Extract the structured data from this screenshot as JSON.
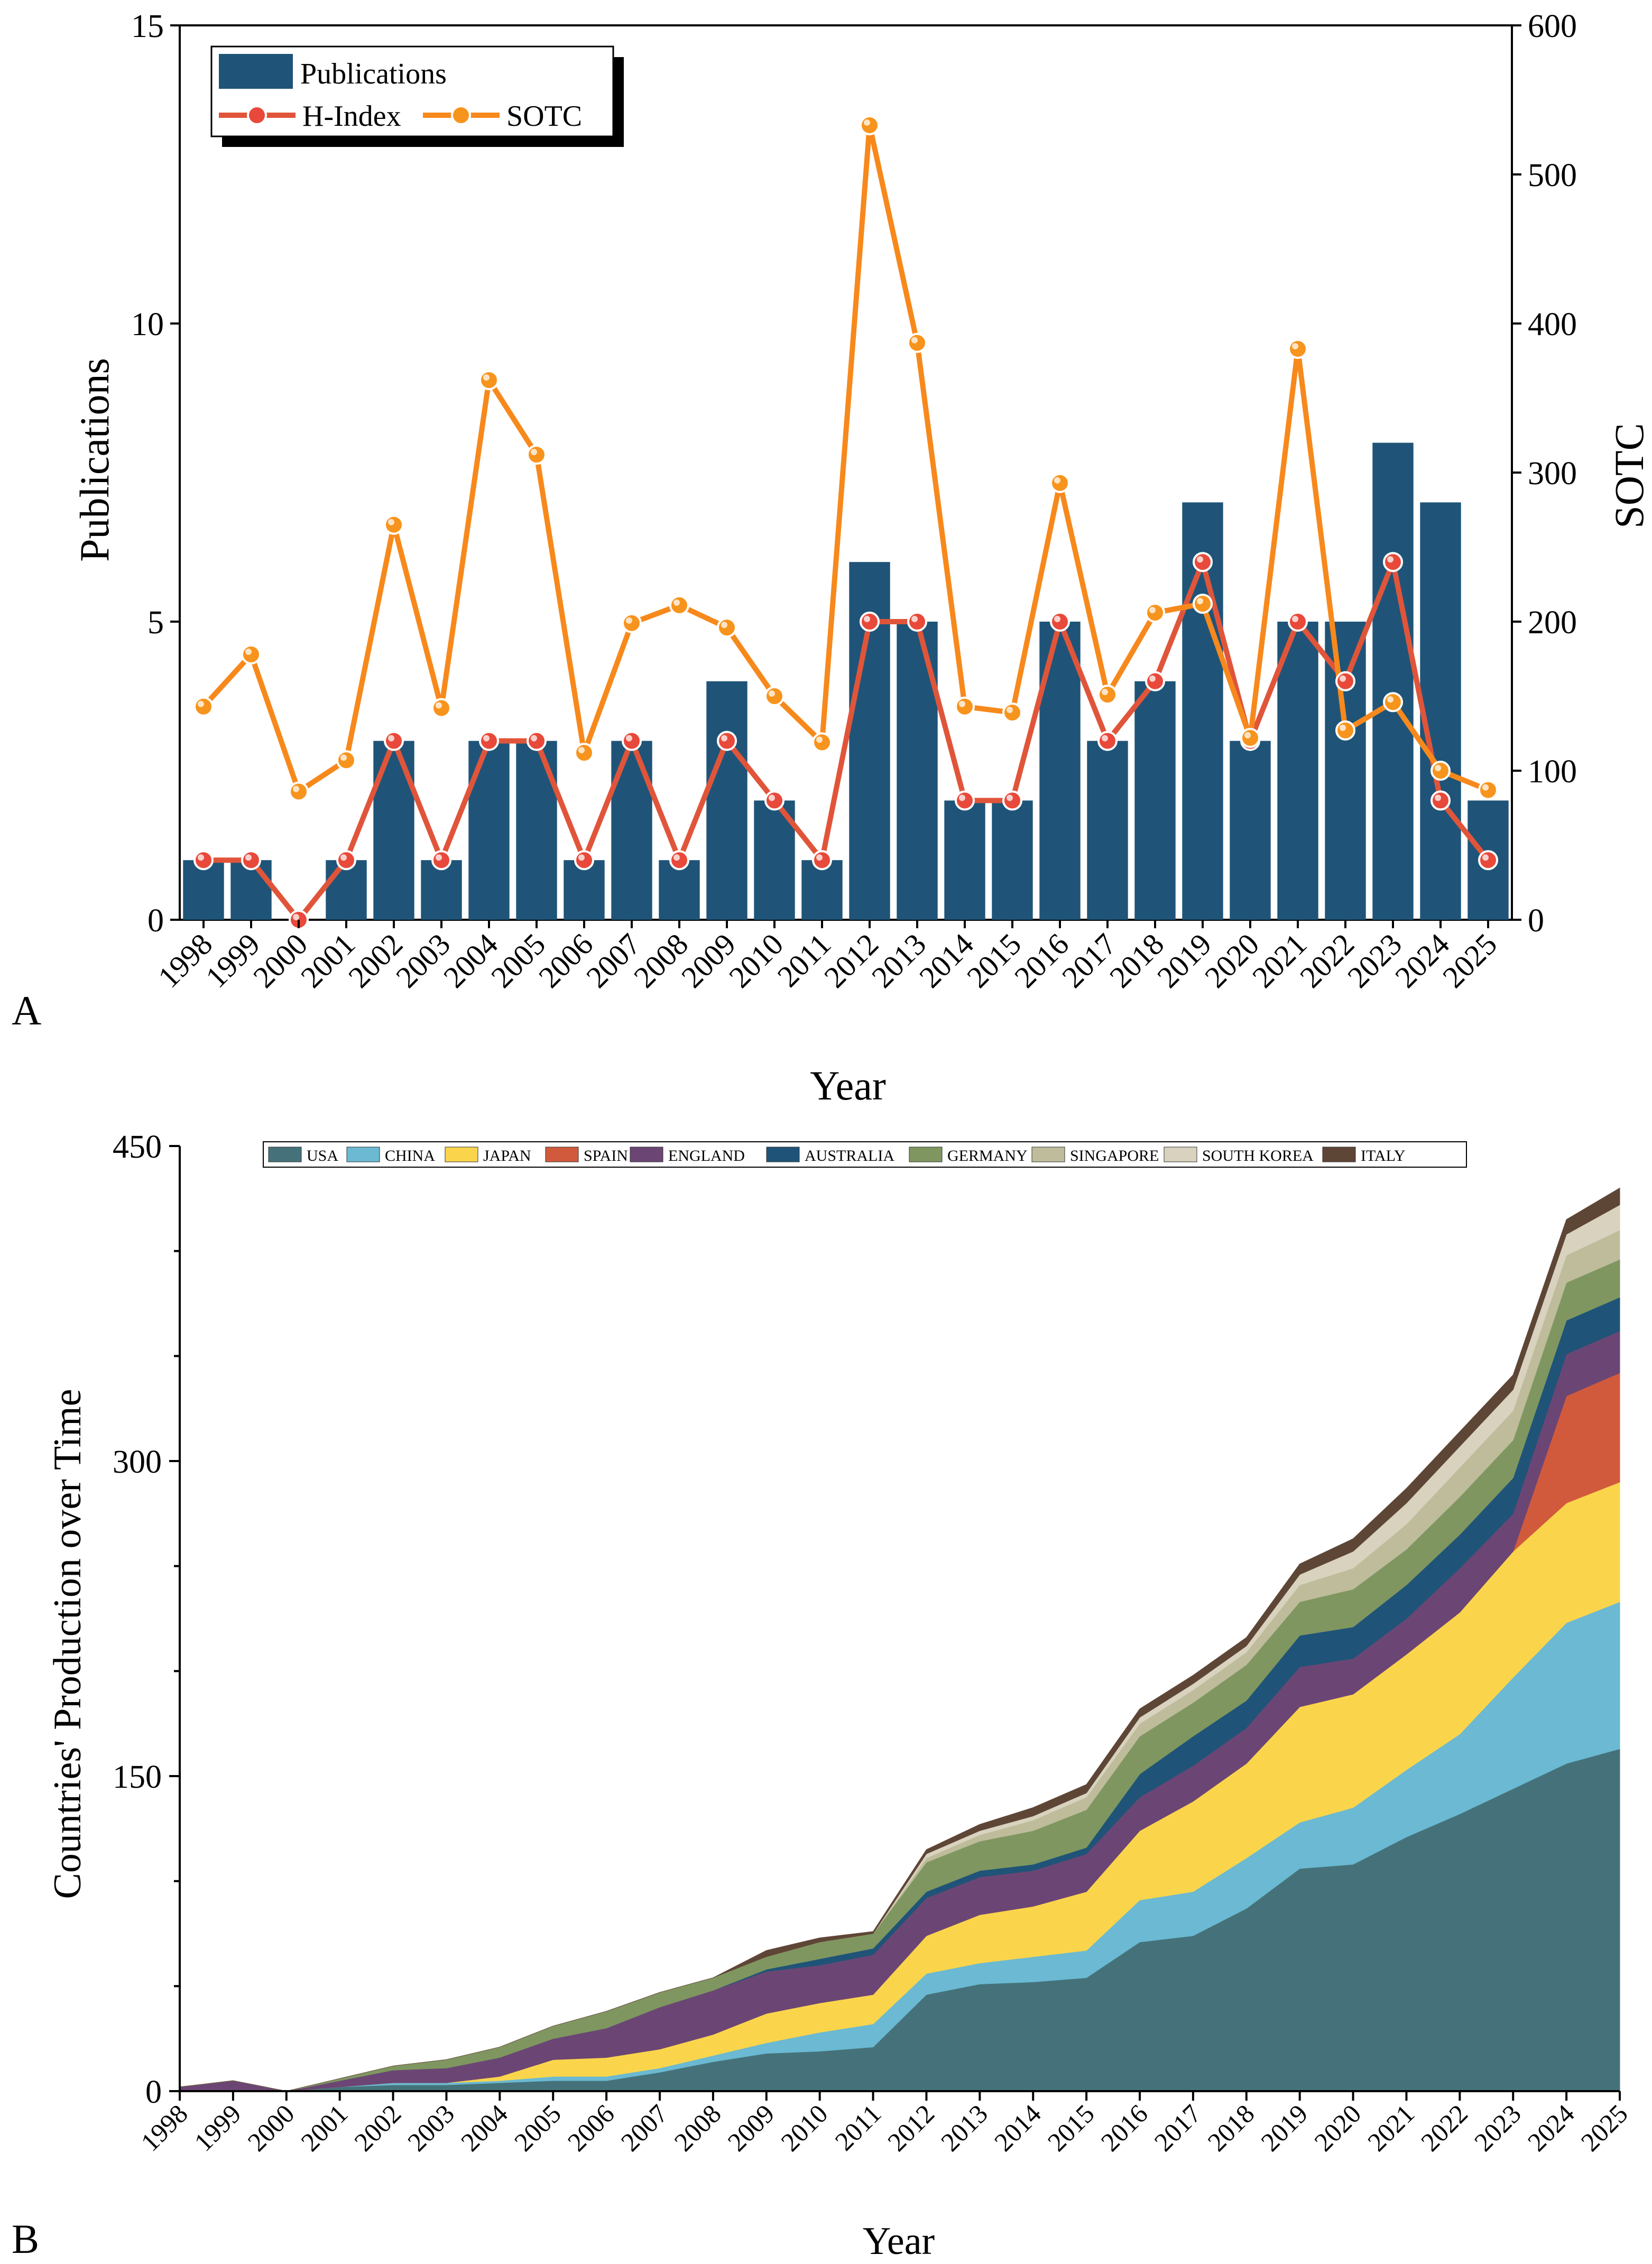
{
  "chart_data": [
    {
      "type": "bar+line",
      "panel_label": "A",
      "title": "",
      "xlabel": "Year",
      "ylabel_left": "Publications",
      "ylabel_right": "SOTC",
      "ylim_left": [
        0,
        15
      ],
      "ylim_right": [
        0,
        600
      ],
      "yticks_left": [
        0,
        5,
        10,
        15
      ],
      "yticks_right": [
        0,
        100,
        200,
        300,
        400,
        500,
        600
      ],
      "legend_position": "top-left",
      "categories": [
        "1998",
        "1999",
        "2000",
        "2001",
        "2002",
        "2003",
        "2004",
        "2005",
        "2006",
        "2007",
        "2008",
        "2009",
        "2010",
        "2011",
        "2012",
        "2013",
        "2014",
        "2015",
        "2016",
        "2017",
        "2018",
        "2019",
        "2020",
        "2021",
        "2022",
        "2023",
        "2024",
        "2025"
      ],
      "series": [
        {
          "name": "Publications",
          "type": "bar",
          "axis": "left",
          "color": "#1f5478",
          "values": [
            1,
            1,
            0,
            1,
            3,
            1,
            3,
            3,
            1,
            3,
            1,
            4,
            2,
            1,
            6,
            5,
            2,
            2,
            5,
            3,
            4,
            7,
            3,
            5,
            5,
            8,
            7,
            2
          ]
        },
        {
          "name": "H-Index",
          "type": "line",
          "axis": "left",
          "color": "#e0553a",
          "marker": "#e8493a",
          "values": [
            1,
            1,
            0,
            1,
            3,
            1,
            3,
            3,
            1,
            3,
            1,
            3,
            2,
            1,
            5,
            5,
            2,
            2,
            5,
            3,
            4,
            6,
            3,
            5,
            4,
            6,
            2,
            1
          ]
        },
        {
          "name": "SOTC",
          "type": "line",
          "axis": "right",
          "color": "#f7891c",
          "marker": "#f7941d",
          "values": [
            143,
            178,
            86,
            107,
            265,
            142,
            362,
            312,
            112,
            199,
            211,
            196,
            150,
            119,
            533,
            387,
            143,
            139,
            293,
            151,
            206,
            212,
            122,
            383,
            127,
            146,
            100,
            87
          ]
        }
      ]
    },
    {
      "type": "area",
      "stacked": true,
      "panel_label": "B",
      "title": "",
      "xlabel": "Year",
      "ylabel": "Countries' Production over Time",
      "ylim": [
        0,
        450
      ],
      "yticks": [
        0,
        150,
        300,
        450
      ],
      "legend_position": "top",
      "x": [
        "1998",
        "1999",
        "2000",
        "2001",
        "2002",
        "2003",
        "2004",
        "2005",
        "2006",
        "2007",
        "2008",
        "2009",
        "2010",
        "2011",
        "2012",
        "2013",
        "2014",
        "2015",
        "2016",
        "2017",
        "2018",
        "2019",
        "2020",
        "2021",
        "2022",
        "2023",
        "2024",
        "2025"
      ],
      "series": [
        {
          "name": "USA",
          "color": "#45727a",
          "values": [
            0,
            0,
            0,
            2,
            3,
            3,
            4,
            5,
            5,
            9,
            14,
            18,
            19,
            21,
            46,
            51,
            52,
            54,
            71,
            74,
            87,
            106,
            108,
            121,
            132,
            144,
            156,
            163
          ]
        },
        {
          "name": "CHINA",
          "color": "#6bb9d2",
          "values": [
            0,
            0,
            0,
            0,
            1,
            1,
            1,
            2,
            2,
            2,
            3,
            5,
            9,
            11,
            10,
            10,
            12,
            13,
            20,
            21,
            24,
            22,
            27,
            32,
            38,
            53,
            67,
            70
          ]
        },
        {
          "name": "JAPAN",
          "color": "#fad54c",
          "values": [
            0,
            0,
            0,
            0,
            0,
            0,
            2,
            8,
            9,
            9,
            10,
            14,
            14,
            14,
            18,
            23,
            24,
            28,
            33,
            43,
            45,
            55,
            54,
            55,
            58,
            60,
            57,
            57
          ]
        },
        {
          "name": "SPAIN",
          "color": "#d25a3c",
          "values": [
            0,
            0,
            0,
            0,
            0,
            0,
            0,
            0,
            0,
            0,
            0,
            0,
            0,
            0,
            0,
            0,
            0,
            0,
            0,
            0,
            0,
            0,
            0,
            0,
            0,
            0,
            51,
            52
          ]
        },
        {
          "name": "ENGLAND",
          "color": "#6b4674",
          "values": [
            2,
            5,
            0,
            3,
            6,
            7,
            9,
            10,
            14,
            20,
            21,
            20,
            18,
            19,
            18,
            18,
            17,
            18,
            16,
            17,
            17,
            19,
            17,
            17,
            21,
            18,
            20,
            20
          ]
        },
        {
          "name": "AUSTRALIA",
          "color": "#1f5478",
          "values": [
            0,
            0,
            0,
            0,
            0,
            0,
            0,
            0,
            0,
            0,
            0,
            1,
            3,
            3,
            3,
            3,
            3,
            3,
            11,
            14,
            13,
            15,
            15,
            16,
            16,
            17,
            16,
            16
          ]
        },
        {
          "name": "GERMANY",
          "color": "#7f9660",
          "values": [
            0,
            0,
            0,
            1,
            2,
            4,
            5,
            6,
            8,
            7,
            6,
            6,
            8,
            7,
            14,
            14,
            16,
            18,
            18,
            16,
            17,
            16,
            18,
            17,
            18,
            18,
            18,
            18
          ]
        },
        {
          "name": "SINGAPORE",
          "color": "#bebc9b",
          "values": [
            0,
            0,
            0,
            0,
            0,
            0,
            0,
            0,
            0,
            0,
            0,
            0,
            0,
            0,
            2,
            3,
            5,
            6,
            6,
            6,
            6,
            8,
            10,
            12,
            14,
            14,
            13,
            14
          ]
        },
        {
          "name": "SOUTH KOREA",
          "color": "#d8d2be",
          "values": [
            0,
            0,
            0,
            0,
            0,
            0,
            0,
            0,
            0,
            0,
            0,
            0,
            0,
            0,
            2,
            2,
            2,
            2,
            3,
            3,
            3,
            5,
            8,
            10,
            10,
            10,
            10,
            12
          ]
        },
        {
          "name": "ITALY",
          "color": "#5e4636",
          "values": [
            0,
            0,
            0,
            0,
            0,
            0,
            0,
            0,
            0,
            0,
            0,
            3,
            2,
            1,
            2,
            3,
            4,
            4,
            4,
            4,
            4,
            5,
            6,
            7,
            7,
            7,
            7,
            8
          ]
        }
      ]
    }
  ]
}
